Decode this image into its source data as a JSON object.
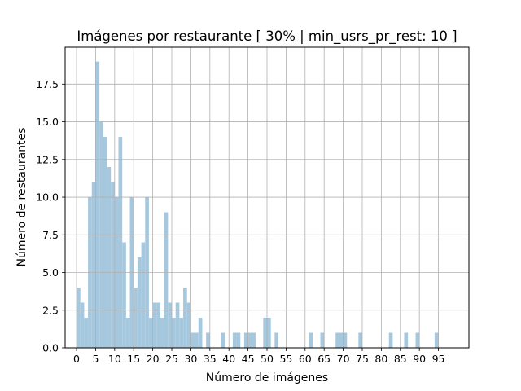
{
  "chart_data": {
    "type": "bar",
    "title": "Imágenes por restaurante [ 30% | min_usrs_pr_rest: 10 ]",
    "xlabel": "Número de imágenes",
    "ylabel": "Número de restaurantes",
    "xlim": [
      -3,
      103
    ],
    "ylim": [
      0,
      19.95
    ],
    "grid": true,
    "bar_color": "#a6c8de",
    "bar_width": 1,
    "x_ticks": [
      "0",
      "5",
      "10",
      "15",
      "20",
      "25",
      "30",
      "35",
      "40",
      "45",
      "50",
      "55",
      "60",
      "65",
      "70",
      "75",
      "80",
      "85",
      "90",
      "95"
    ],
    "y_ticks": [
      "0.0",
      "2.5",
      "5.0",
      "7.5",
      "10.0",
      "12.5",
      "15.0",
      "17.5"
    ],
    "x": [
      0,
      1,
      2,
      3,
      4,
      5,
      6,
      7,
      8,
      9,
      10,
      11,
      12,
      13,
      14,
      15,
      16,
      17,
      18,
      19,
      20,
      21,
      22,
      23,
      24,
      25,
      26,
      27,
      28,
      29,
      30,
      31,
      32,
      33,
      34,
      36,
      38,
      41,
      42,
      44,
      45,
      46,
      49,
      50,
      52,
      61,
      64,
      68,
      69,
      70,
      74,
      82,
      86,
      89,
      94
    ],
    "values": [
      4,
      3,
      2,
      10,
      11,
      19,
      15,
      14,
      12,
      11,
      10,
      14,
      7,
      2,
      10,
      4,
      6,
      7,
      10,
      2,
      3,
      3,
      2,
      9,
      3,
      2,
      3,
      2,
      4,
      3,
      1,
      1,
      2,
      0,
      1,
      0,
      1,
      1,
      1,
      1,
      1,
      1,
      2,
      2,
      1,
      1,
      1,
      1,
      1,
      1,
      1,
      1,
      1,
      1,
      1
    ]
  }
}
